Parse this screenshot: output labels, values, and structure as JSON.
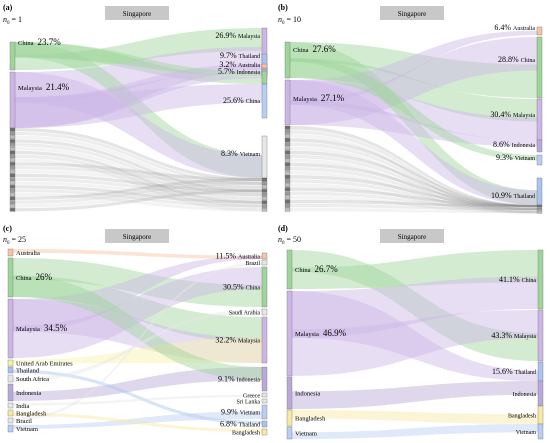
{
  "center_label": "Singapore",
  "colors": {
    "china": "#9ed59a",
    "malaysia": "#cdb6e6",
    "thailand": "#a8c4ef",
    "indonesia": "#b9a9d8",
    "bangladesh": "#f8e9a2",
    "vietnam": "#b8cef5",
    "australia": "#f6c3a4",
    "uae": "#f7f2a6",
    "other": "#e7e7e7",
    "grey_dark": "#6f6f6f",
    "header_bg": "#c8c8c8"
  },
  "panels": [
    {
      "id": "a",
      "letter": "(a)",
      "param_sym": "n",
      "param_sub": "0",
      "param_val": "= 1",
      "left": [
        {
          "name": "China",
          "pct": "23.7%"
        },
        {
          "name": "Malaysia",
          "pct": "21.4%"
        }
      ],
      "right": [
        {
          "pct": "26.9%",
          "name": "Malaysia"
        },
        {
          "pct": "9.7%",
          "name": "Thailand"
        },
        {
          "pct": "3.2%",
          "name": "Australia"
        },
        {
          "pct": "5.7%",
          "name": "Indonesia"
        },
        {
          "pct": "25.6%",
          "name": "China"
        },
        {
          "pct": "8.3%",
          "name": "Vietnam"
        }
      ]
    },
    {
      "id": "b",
      "letter": "(b)",
      "param_sym": "n",
      "param_sub": "0",
      "param_val": "= 10",
      "left": [
        {
          "name": "China",
          "pct": "27.6%"
        },
        {
          "name": "Malaysia",
          "pct": "27.1%"
        }
      ],
      "right": [
        {
          "pct": "6.4%",
          "name": "Australia"
        },
        {
          "pct": "28.8%",
          "name": "China"
        },
        {
          "pct": "30.4%",
          "name": "Malaysia"
        },
        {
          "pct": "8.6%",
          "name": "Indonesia"
        },
        {
          "pct": "9.3%",
          "name": "Vietnam"
        },
        {
          "pct": "10.9%",
          "name": "Thailand"
        }
      ]
    },
    {
      "id": "c",
      "letter": "(c)",
      "param_sym": "n",
      "param_sub": "0",
      "param_val": "= 25",
      "left": [
        {
          "name": "Australia",
          "pct": ""
        },
        {
          "name": "China",
          "pct": "26%"
        },
        {
          "name": "Malaysia",
          "pct": "34.5%"
        },
        {
          "name": "United Arab Emirates",
          "pct": ""
        },
        {
          "name": "Thailand",
          "pct": ""
        },
        {
          "name": "South Africa",
          "pct": ""
        },
        {
          "name": "Indonesia",
          "pct": ""
        },
        {
          "name": "India",
          "pct": ""
        },
        {
          "name": "Bangladesh",
          "pct": ""
        },
        {
          "name": "Brazil",
          "pct": ""
        },
        {
          "name": "Vietnam",
          "pct": ""
        }
      ],
      "right": [
        {
          "pct": "11.5%",
          "name": "Australia"
        },
        {
          "pct": "",
          "name": "Brazil"
        },
        {
          "pct": "30.5%",
          "name": "China"
        },
        {
          "pct": "",
          "name": "Saudi Arabia"
        },
        {
          "pct": "32.2%",
          "name": "Malaysia"
        },
        {
          "pct": "9.1%",
          "name": "Indonesia"
        },
        {
          "pct": "",
          "name": "Greece"
        },
        {
          "pct": "",
          "name": "Sri Lanka"
        },
        {
          "pct": "9.9%",
          "name": "Vietnam"
        },
        {
          "pct": "6.8%",
          "name": "Thailand"
        },
        {
          "pct": "",
          "name": "Bangladesh"
        }
      ]
    },
    {
      "id": "d",
      "letter": "(d)",
      "param_sym": "n",
      "param_sub": "0",
      "param_val": "= 50",
      "left": [
        {
          "name": "China",
          "pct": "26.7%"
        },
        {
          "name": "Malaysia",
          "pct": "46.9%"
        },
        {
          "name": "Indonesia",
          "pct": ""
        },
        {
          "name": "Bangladesh",
          "pct": ""
        },
        {
          "name": "Vietnam",
          "pct": ""
        }
      ],
      "right": [
        {
          "pct": "41.1%",
          "name": "China"
        },
        {
          "pct": "43.3%",
          "name": "Malaysia"
        },
        {
          "pct": "15.6%",
          "name": "Thailand"
        },
        {
          "pct": "",
          "name": "Indonesia"
        },
        {
          "pct": "",
          "name": "Bangladesh"
        },
        {
          "pct": "",
          "name": "Vietnam"
        }
      ]
    }
  ]
}
